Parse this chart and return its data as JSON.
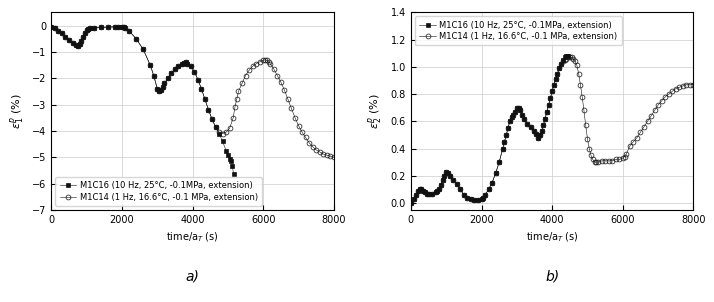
{
  "panel_a": {
    "ylabel": "$\\varepsilon_1^p$ (%)",
    "xlabel": "time/a$_T$ (s)",
    "xlim": [
      0,
      8000
    ],
    "ylim": [
      -7,
      0.5
    ],
    "yticks": [
      0,
      -1,
      -2,
      -3,
      -4,
      -5,
      -6,
      -7
    ],
    "xticks": [
      0,
      2000,
      4000,
      6000,
      8000
    ],
    "legend_loc": "lower left",
    "label_a": "a)",
    "series": [
      {
        "label": "M1C16 (10 Hz, 25°C, -0.1MPa, extension)",
        "marker": "s",
        "markersize": 2.5,
        "color": "#111111",
        "fillstyle": "full"
      },
      {
        "label": "M1C14 (1 Hz, 16.6°C, -0.1 MPa, extension)",
        "marker": "o",
        "markersize": 3.5,
        "color": "#111111",
        "fillstyle": "none"
      }
    ]
  },
  "panel_b": {
    "ylabel": "$\\varepsilon_2^p$ (%)",
    "xlabel": "time/a$_T$ (s)",
    "xlim": [
      0,
      8000
    ],
    "ylim": [
      -0.05,
      1.4
    ],
    "yticks": [
      0.0,
      0.2,
      0.4,
      0.6,
      0.8,
      1.0,
      1.2,
      1.4
    ],
    "xticks": [
      0,
      2000,
      4000,
      6000,
      8000
    ],
    "legend_loc": "upper left",
    "label_b": "b)",
    "series": [
      {
        "label": "M1C16 (10 Hz, 25°C, -0.1MPa, extension)",
        "marker": "s",
        "markersize": 2.5,
        "color": "#111111",
        "fillstyle": "full"
      },
      {
        "label": "M1C14 (1 Hz, 16.6°C, -0.1 MPa, extension)",
        "marker": "o",
        "markersize": 3.5,
        "color": "#111111",
        "fillstyle": "none"
      }
    ]
  },
  "background_color": "#ffffff",
  "grid_color": "#cccccc",
  "font_size": 7
}
